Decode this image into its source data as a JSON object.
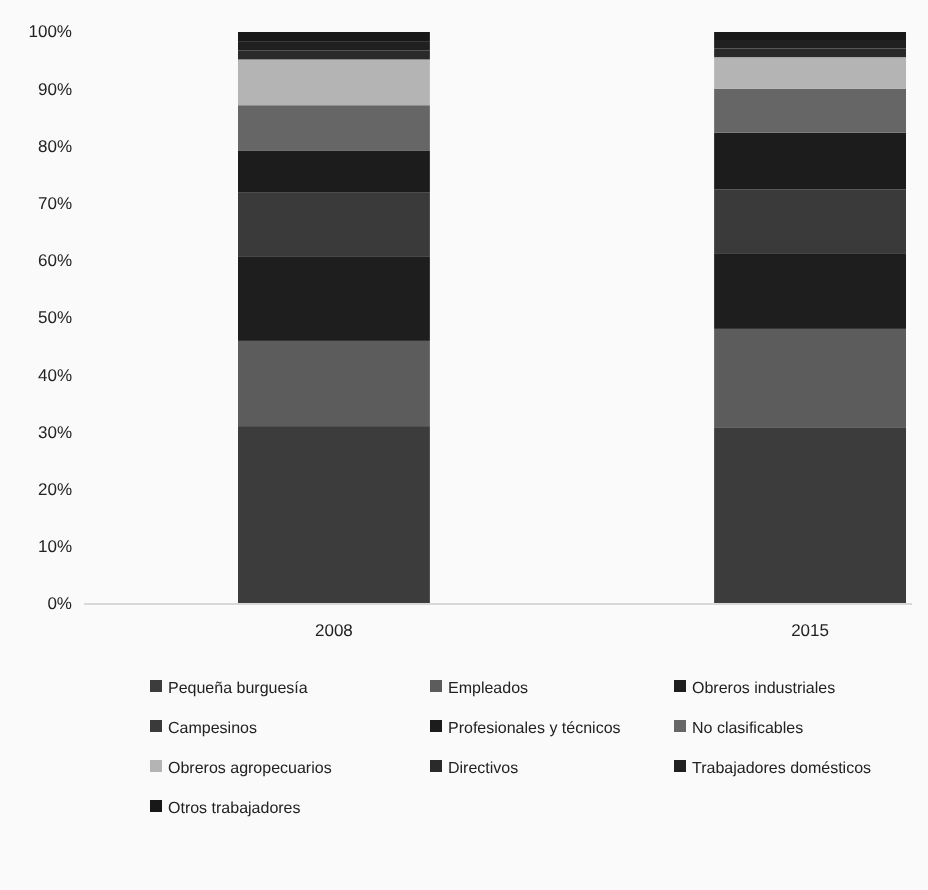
{
  "chart_data": {
    "type": "bar",
    "stacked": true,
    "categories": [
      "2008",
      "2015"
    ],
    "series": [
      {
        "name": "Pequeña burguesía",
        "color": "#3c3c3c",
        "values": [
          31.1,
          30.9
        ]
      },
      {
        "name": "Empleados",
        "color": "#5c5c5c",
        "values": [
          14.9,
          17.2
        ]
      },
      {
        "name": "Obreros industriales",
        "color": "#1e1e1e",
        "values": [
          14.8,
          13.1
        ]
      },
      {
        "name": "Campesinos",
        "color": "#3a3a3a",
        "values": [
          11.2,
          11.3
        ]
      },
      {
        "name": "Profesionales y técnicos",
        "color": "#1c1c1c",
        "values": [
          7.3,
          9.9
        ]
      },
      {
        "name": "No clasificables",
        "color": "#666666",
        "values": [
          7.9,
          7.7
        ]
      },
      {
        "name": "Obreros agropecuarios",
        "color": "#b4b4b4",
        "values": [
          8.0,
          5.5
        ]
      },
      {
        "name": "Directivos",
        "color": "#2a2a2a",
        "values": [
          1.6,
          1.5
        ]
      },
      {
        "name": "Trabajadores domésticos",
        "color": "#202020",
        "values": [
          1.6,
          1.5
        ]
      },
      {
        "name": "Otros trabajadores",
        "color": "#181818",
        "values": [
          1.6,
          1.4
        ]
      }
    ],
    "ylim": [
      0,
      100
    ],
    "yticks": [
      {
        "value": 0,
        "label": "0%"
      },
      {
        "value": 10,
        "label": "10%"
      },
      {
        "value": 20,
        "label": "20%"
      },
      {
        "value": 30,
        "label": "30%"
      },
      {
        "value": 40,
        "label": "40%"
      },
      {
        "value": 50,
        "label": "50%"
      },
      {
        "value": 60,
        "label": "60%"
      },
      {
        "value": 70,
        "label": "70%"
      },
      {
        "value": 80,
        "label": "80%"
      },
      {
        "value": 90,
        "label": "90%"
      },
      {
        "value": 100,
        "label": "100%"
      }
    ],
    "legend": "bottom"
  }
}
